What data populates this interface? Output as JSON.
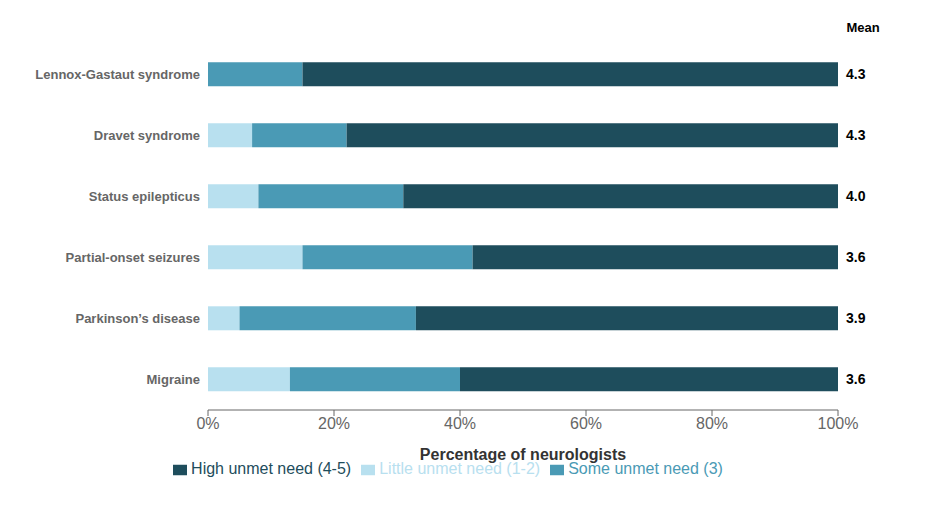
{
  "chart_data": {
    "type": "bar",
    "orientation": "horizontal",
    "stacked": true,
    "categories": [
      "Lennox-Gastaut syndrome",
      "Dravet syndrome",
      "Status epilepticus",
      "Partial-onset seizures",
      "Parkinson’s disease",
      "Migraine"
    ],
    "series": [
      {
        "name": "Little unmet need (1-2)",
        "color": "#b8e0ef",
        "values": [
          0,
          7,
          8,
          15,
          5,
          13
        ]
      },
      {
        "name": "Some unmet need (3)",
        "color": "#4a9ab5",
        "values": [
          15,
          15,
          23,
          27,
          28,
          27
        ]
      },
      {
        "name": "High unmet need (4-5)",
        "color": "#1e4d5c",
        "values": [
          85,
          78,
          69,
          58,
          67,
          60
        ]
      }
    ],
    "means": {
      "title": "Mean",
      "values": [
        4.3,
        4.3,
        4.0,
        3.6,
        3.9,
        3.6
      ],
      "value_labels": [
        "4.3",
        "4.3",
        "4.0",
        "3.6",
        "3.9",
        "3.6"
      ]
    },
    "xlabel": "Percentage of neurologists",
    "xlim": [
      0,
      100
    ],
    "xticks": [
      {
        "value": 0,
        "label": "0%"
      },
      {
        "value": 20,
        "label": "20%"
      },
      {
        "value": 40,
        "label": "40%"
      },
      {
        "value": 60,
        "label": "60%"
      },
      {
        "value": 80,
        "label": "80%"
      },
      {
        "value": 100,
        "label": "100%"
      }
    ],
    "grid": false,
    "legend": "bottom"
  }
}
